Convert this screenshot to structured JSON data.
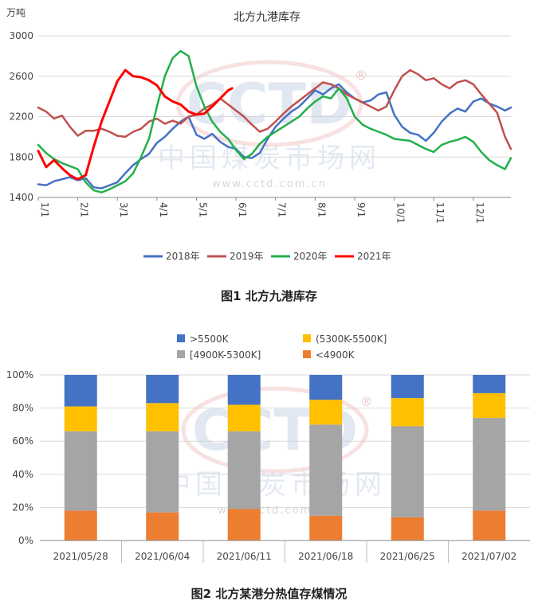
{
  "chart_data": [
    {
      "type": "line",
      "title": "北方九港库存",
      "ylabel": "万吨",
      "xlabel": "",
      "ylim": [
        1400,
        3000
      ],
      "y_ticks": [
        1400,
        1800,
        2200,
        2600,
        3000
      ],
      "x_tick_labels": [
        "1/1",
        "2/1",
        "3/1",
        "4/1",
        "5/1",
        "6/1",
        "7/1",
        "8/1",
        "9/1",
        "10/1",
        "11/1",
        "12/1"
      ],
      "x_tick_months": [
        1,
        2,
        3,
        4,
        5,
        6,
        7,
        8,
        9,
        10,
        11,
        12
      ],
      "x_range": [
        1,
        12.95
      ],
      "legend_position": "bottom",
      "series": [
        {
          "name": "2018年",
          "color": "#4472C4",
          "x": [
            1,
            1.2,
            1.4,
            1.6,
            1.8,
            2.0,
            2.2,
            2.4,
            2.6,
            2.8,
            3.0,
            3.2,
            3.4,
            3.6,
            3.8,
            4.0,
            4.2,
            4.4,
            4.6,
            4.8,
            5.0,
            5.2,
            5.4,
            5.6,
            5.8,
            6.0,
            6.2,
            6.4,
            6.6,
            6.8,
            7.0,
            7.2,
            7.4,
            7.6,
            7.8,
            8.0,
            8.2,
            8.4,
            8.6,
            8.8,
            9.0,
            9.2,
            9.4,
            9.6,
            9.8,
            10.0,
            10.2,
            10.4,
            10.6,
            10.8,
            11.0,
            11.2,
            11.4,
            11.6,
            11.8,
            12.0,
            12.2,
            12.4,
            12.6,
            12.8,
            12.95
          ],
          "y": [
            1530,
            1520,
            1560,
            1580,
            1600,
            1570,
            1590,
            1500,
            1490,
            1520,
            1550,
            1640,
            1720,
            1780,
            1830,
            1940,
            2000,
            2080,
            2150,
            2200,
            2020,
            1980,
            2030,
            1950,
            1900,
            1880,
            1800,
            1790,
            1840,
            1980,
            2100,
            2180,
            2250,
            2300,
            2380,
            2460,
            2420,
            2480,
            2520,
            2440,
            2380,
            2340,
            2360,
            2420,
            2440,
            2220,
            2100,
            2040,
            2020,
            1960,
            2040,
            2150,
            2230,
            2280,
            2250,
            2350,
            2380,
            2330,
            2300,
            2260,
            2290
          ]
        },
        {
          "name": "2019年",
          "color": "#C0504D",
          "x": [
            1,
            1.2,
            1.4,
            1.6,
            1.8,
            2.0,
            2.2,
            2.4,
            2.6,
            2.8,
            3.0,
            3.2,
            3.4,
            3.6,
            3.8,
            4.0,
            4.2,
            4.4,
            4.6,
            4.8,
            5.0,
            5.2,
            5.4,
            5.6,
            5.8,
            6.0,
            6.2,
            6.4,
            6.6,
            6.8,
            7.0,
            7.2,
            7.4,
            7.6,
            7.8,
            8.0,
            8.2,
            8.4,
            8.6,
            8.8,
            9.0,
            9.2,
            9.4,
            9.6,
            9.8,
            10.0,
            10.2,
            10.4,
            10.6,
            10.8,
            11.0,
            11.2,
            11.4,
            11.6,
            11.8,
            12.0,
            12.2,
            12.4,
            12.6,
            12.8,
            12.95
          ],
          "y": [
            2290,
            2250,
            2180,
            2210,
            2100,
            2010,
            2060,
            2060,
            2080,
            2050,
            2010,
            2000,
            2050,
            2080,
            2150,
            2180,
            2130,
            2160,
            2130,
            2200,
            2220,
            2280,
            2320,
            2380,
            2320,
            2260,
            2200,
            2120,
            2050,
            2080,
            2150,
            2230,
            2300,
            2360,
            2420,
            2480,
            2540,
            2520,
            2480,
            2420,
            2380,
            2340,
            2300,
            2260,
            2300,
            2460,
            2600,
            2660,
            2620,
            2560,
            2580,
            2520,
            2480,
            2540,
            2560,
            2520,
            2420,
            2330,
            2240,
            2000,
            1880
          ]
        },
        {
          "name": "2020年",
          "color": "#22B04B",
          "x": [
            1,
            1.2,
            1.4,
            1.6,
            1.8,
            2.0,
            2.2,
            2.4,
            2.6,
            2.8,
            3.0,
            3.2,
            3.4,
            3.6,
            3.8,
            4.0,
            4.2,
            4.4,
            4.6,
            4.8,
            5.0,
            5.2,
            5.4,
            5.6,
            5.8,
            6.0,
            6.2,
            6.4,
            6.6,
            6.8,
            7.0,
            7.2,
            7.4,
            7.6,
            7.8,
            8.0,
            8.2,
            8.4,
            8.6,
            8.8,
            9.0,
            9.2,
            9.4,
            9.6,
            9.8,
            10.0,
            10.2,
            10.4,
            10.6,
            10.8,
            11.0,
            11.2,
            11.4,
            11.6,
            11.8,
            12.0,
            12.2,
            12.4,
            12.6,
            12.8,
            12.95
          ],
          "y": [
            1920,
            1840,
            1780,
            1740,
            1710,
            1680,
            1550,
            1470,
            1450,
            1480,
            1520,
            1560,
            1640,
            1800,
            1980,
            2300,
            2600,
            2780,
            2850,
            2800,
            2500,
            2300,
            2150,
            2050,
            1980,
            1870,
            1780,
            1830,
            1930,
            2000,
            2050,
            2100,
            2150,
            2200,
            2280,
            2350,
            2400,
            2380,
            2480,
            2380,
            2200,
            2120,
            2080,
            2050,
            2020,
            1980,
            1970,
            1960,
            1920,
            1880,
            1850,
            1920,
            1950,
            1970,
            2000,
            1950,
            1850,
            1770,
            1720,
            1680,
            1790
          ]
        },
        {
          "name": "2021年",
          "color": "#FF0000",
          "x": [
            1,
            1.2,
            1.4,
            1.6,
            1.8,
            2.0,
            2.2,
            2.4,
            2.6,
            2.8,
            3.0,
            3.2,
            3.4,
            3.6,
            3.8,
            4.0,
            4.2,
            4.4,
            4.6,
            4.8,
            5.0,
            5.2,
            5.4,
            5.6,
            5.8,
            5.9
          ],
          "y": [
            1860,
            1700,
            1770,
            1690,
            1620,
            1580,
            1620,
            1900,
            2150,
            2350,
            2550,
            2660,
            2600,
            2590,
            2560,
            2510,
            2400,
            2350,
            2320,
            2250,
            2220,
            2230,
            2300,
            2380,
            2460,
            2480
          ]
        }
      ]
    },
    {
      "type": "bar",
      "stacked": true,
      "title": "",
      "ylim": [
        0,
        100
      ],
      "y_ticks": [
        "0%",
        "20%",
        "40%",
        "60%",
        "80%",
        "100%"
      ],
      "categories": [
        "2021/05/28",
        "2021/06/04",
        "2021/06/11",
        "2021/06/18",
        "2021/06/25",
        "2021/07/02"
      ],
      "legend_position": "top",
      "series": [
        {
          "name": "<4900K",
          "color": "#ED7D31",
          "values": [
            18,
            17,
            19,
            15,
            14,
            18
          ]
        },
        {
          "name": "[4900K-5300K]",
          "color": "#A5A5A5",
          "values": [
            48,
            49,
            47,
            55,
            55,
            56
          ]
        },
        {
          "name": "(5300K-5500K]",
          "color": "#FFC000",
          "values": [
            15,
            17,
            16,
            15,
            17,
            15
          ]
        },
        {
          "name": ">5500K",
          "color": "#4472C4",
          "values": [
            19,
            17,
            18,
            15,
            14,
            11
          ]
        }
      ]
    }
  ],
  "captions": {
    "fig1": "图1  北方九港库存",
    "fig2": "图2 北方某港分热值存煤情况"
  },
  "watermark": {
    "logo": "CCTD",
    "registered": "®",
    "cn": "中国煤炭市场网",
    "url": "www.cctd.com.cn"
  }
}
